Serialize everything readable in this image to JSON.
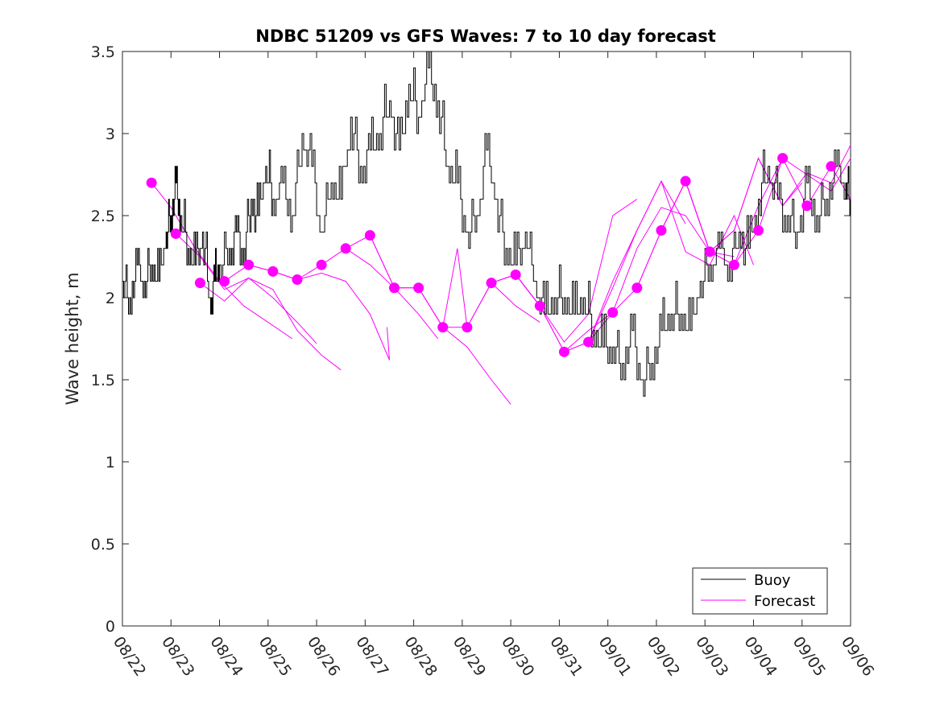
{
  "chart_data": {
    "type": "line",
    "title": "NDBC 51209 vs GFS Waves: 7 to 10 day forecast",
    "xlabel": "",
    "ylabel": "Wave height, m",
    "xlim": [
      0,
      15
    ],
    "ylim": [
      0,
      3.5
    ],
    "x_tick_labels": [
      "08/22",
      "08/23",
      "08/24",
      "08/25",
      "08/26",
      "08/27",
      "08/28",
      "08/29",
      "08/30",
      "08/31",
      "09/01",
      "09/02",
      "09/03",
      "09/04",
      "09/05",
      "09/06"
    ],
    "y_ticks": [
      0,
      0.5,
      1,
      1.5,
      2,
      2.5,
      3,
      3.5
    ],
    "y_tick_labels": [
      "0",
      "0.5",
      "1",
      "1.5",
      "2",
      "2.5",
      "3",
      "3.5"
    ],
    "grid": false,
    "legend": {
      "position": "bottom-right",
      "entries": [
        "Buoy",
        "Forecast"
      ]
    },
    "colors": {
      "buoy": "#000000",
      "forecast": "#ff00ff",
      "axis": "#262626"
    },
    "series": [
      {
        "name": "Buoy",
        "x": [
          0,
          0.15,
          0.3,
          0.45,
          0.6,
          0.75,
          0.9,
          1.0,
          1.1,
          1.2,
          1.35,
          1.5,
          1.65,
          1.8,
          1.9,
          2.0,
          2.2,
          2.35,
          2.5,
          2.65,
          2.8,
          2.95,
          3.1,
          3.3,
          3.5,
          3.7,
          3.9,
          4.1,
          4.3,
          4.5,
          4.7,
          4.9,
          5.1,
          5.3,
          5.5,
          5.7,
          5.9,
          6.1,
          6.3,
          6.5,
          6.7,
          6.9,
          7.1,
          7.3,
          7.5,
          7.7,
          7.9,
          8.1,
          8.3,
          8.5,
          8.7,
          8.9,
          9.1,
          9.3,
          9.5,
          9.7,
          9.9,
          10.1,
          10.3,
          10.5,
          10.7,
          10.9,
          11.1,
          11.3,
          11.5,
          11.7,
          11.9,
          12.1,
          12.3,
          12.5,
          12.7,
          12.9,
          13.1,
          13.3,
          13.5,
          13.7,
          13.9,
          14.1,
          14.3,
          14.5,
          14.7,
          14.9,
          15.0
        ],
        "y": [
          2.1,
          2.0,
          2.2,
          2.1,
          2.2,
          2.1,
          2.4,
          2.5,
          2.7,
          2.5,
          2.3,
          2.2,
          2.4,
          2.0,
          2.1,
          2.2,
          2.3,
          2.4,
          2.3,
          2.6,
          2.5,
          2.8,
          2.6,
          2.7,
          2.5,
          3.0,
          2.8,
          2.4,
          2.7,
          2.6,
          3.1,
          2.8,
          2.9,
          3.0,
          3.2,
          2.9,
          3.3,
          3.1,
          3.4,
          3.2,
          2.8,
          2.7,
          2.4,
          2.5,
          2.9,
          2.6,
          2.3,
          2.2,
          2.4,
          2.1,
          1.9,
          2.0,
          2.0,
          1.9,
          2.0,
          1.8,
          1.7,
          1.7,
          1.6,
          1.8,
          1.5,
          1.6,
          1.8,
          1.9,
          1.9,
          1.8,
          2.1,
          2.2,
          2.3,
          2.2,
          2.4,
          2.3,
          2.6,
          2.8,
          2.6,
          2.5,
          2.4,
          2.7,
          2.5,
          2.6,
          2.8,
          2.7,
          2.6
        ]
      },
      {
        "name": "Forecast",
        "x": [
          0.6,
          1.1,
          1.6,
          2.1,
          2.6,
          3.1,
          3.6,
          4.1,
          4.6,
          5.1,
          5.6,
          6.1,
          6.6,
          7.1,
          7.6,
          8.1,
          8.6,
          9.1,
          9.6,
          10.1,
          10.6,
          11.1,
          11.6,
          12.1,
          12.6,
          13.1,
          13.6,
          14.1,
          14.6
        ],
        "y": [
          2.7,
          2.39,
          2.09,
          2.1,
          2.2,
          2.16,
          2.11,
          2.2,
          2.3,
          2.38,
          2.06,
          2.06,
          1.82,
          1.82,
          2.09,
          2.14,
          1.95,
          1.67,
          1.73,
          1.91,
          2.06,
          2.41,
          2.71,
          2.28,
          2.2,
          2.41,
          2.85,
          2.56,
          2.8
        ]
      }
    ],
    "forecast_runs": [
      [
        [
          0.6,
          2.7
        ],
        [
          1.0,
          2.55
        ],
        [
          1.5,
          2.3
        ],
        [
          2.0,
          2.1
        ],
        [
          2.5,
          1.95
        ],
        [
          3.0,
          1.85
        ],
        [
          3.5,
          1.75
        ]
      ],
      [
        [
          1.1,
          2.39
        ],
        [
          1.6,
          2.25
        ],
        [
          2.1,
          2.05
        ],
        [
          2.6,
          2.12
        ],
        [
          3.1,
          2.0
        ],
        [
          3.6,
          1.85
        ],
        [
          4.0,
          1.72
        ]
      ],
      [
        [
          1.6,
          2.09
        ],
        [
          2.1,
          1.98
        ],
        [
          2.6,
          2.12
        ],
        [
          3.1,
          2.05
        ],
        [
          3.6,
          1.8
        ],
        [
          4.1,
          1.65
        ],
        [
          4.5,
          1.56
        ]
      ],
      [
        [
          2.1,
          2.1
        ],
        [
          2.6,
          2.2
        ],
        [
          3.1,
          2.16
        ],
        [
          3.6,
          2.11
        ],
        [
          4.1,
          2.15
        ],
        [
          4.6,
          2.1
        ],
        [
          5.1,
          1.9
        ],
        [
          5.5,
          1.62
        ],
        [
          5.45,
          1.82
        ]
      ],
      [
        [
          2.6,
          2.2
        ],
        [
          3.1,
          2.16
        ],
        [
          3.6,
          2.11
        ],
        [
          4.1,
          2.2
        ],
        [
          4.6,
          2.3
        ],
        [
          5.1,
          2.2
        ],
        [
          5.6,
          2.06
        ],
        [
          6.1,
          1.9
        ],
        [
          6.5,
          1.75
        ]
      ],
      [
        [
          4.6,
          2.3
        ],
        [
          5.1,
          2.38
        ],
        [
          5.6,
          2.06
        ],
        [
          6.1,
          2.06
        ],
        [
          6.6,
          1.82
        ],
        [
          7.1,
          1.7
        ],
        [
          7.6,
          1.5
        ],
        [
          8.0,
          1.35
        ]
      ],
      [
        [
          5.1,
          2.38
        ],
        [
          5.6,
          2.06
        ],
        [
          6.1,
          2.06
        ],
        [
          6.6,
          1.82
        ],
        [
          7.1,
          1.82
        ],
        [
          7.6,
          2.09
        ],
        [
          8.1,
          1.95
        ],
        [
          8.6,
          1.85
        ]
      ],
      [
        [
          6.6,
          1.82
        ],
        [
          6.9,
          2.3
        ],
        [
          7.1,
          1.82
        ],
        [
          7.6,
          2.09
        ],
        [
          8.1,
          2.14
        ],
        [
          8.6,
          1.95
        ],
        [
          9.1,
          1.73
        ],
        [
          9.6,
          1.9
        ],
        [
          10.1,
          2.5
        ],
        [
          10.6,
          2.6
        ]
      ],
      [
        [
          7.6,
          2.09
        ],
        [
          8.1,
          2.14
        ],
        [
          8.6,
          1.95
        ],
        [
          9.1,
          1.67
        ],
        [
          9.6,
          1.73
        ],
        [
          10.1,
          2.1
        ],
        [
          10.6,
          2.41
        ],
        [
          11.1,
          2.71
        ],
        [
          11.6,
          2.45
        ]
      ],
      [
        [
          8.1,
          2.14
        ],
        [
          8.6,
          1.95
        ],
        [
          9.1,
          1.67
        ],
        [
          9.6,
          1.8
        ],
        [
          10.1,
          1.91
        ],
        [
          10.6,
          2.3
        ],
        [
          11.1,
          2.55
        ],
        [
          11.6,
          2.5
        ],
        [
          12.1,
          2.28
        ],
        [
          12.6,
          2.25
        ]
      ],
      [
        [
          9.1,
          1.67
        ],
        [
          9.6,
          1.73
        ],
        [
          10.1,
          2.06
        ],
        [
          10.6,
          2.41
        ],
        [
          11.1,
          2.71
        ],
        [
          11.6,
          2.28
        ],
        [
          12.1,
          2.2
        ],
        [
          12.6,
          2.5
        ],
        [
          13.0,
          2.2
        ]
      ],
      [
        [
          9.6,
          1.73
        ],
        [
          10.1,
          1.91
        ],
        [
          10.6,
          2.06
        ],
        [
          11.1,
          2.41
        ],
        [
          11.6,
          2.71
        ],
        [
          12.1,
          2.28
        ],
        [
          12.6,
          2.41
        ],
        [
          13.1,
          2.85
        ],
        [
          13.6,
          2.56
        ],
        [
          14.0,
          2.7
        ]
      ],
      [
        [
          10.6,
          2.06
        ],
        [
          11.1,
          2.41
        ],
        [
          11.6,
          2.71
        ],
        [
          12.1,
          2.28
        ],
        [
          12.6,
          2.2
        ],
        [
          13.1,
          2.41
        ],
        [
          13.6,
          2.85
        ],
        [
          14.1,
          2.56
        ],
        [
          14.6,
          2.8
        ],
        [
          15.0,
          2.6
        ]
      ],
      [
        [
          11.1,
          2.41
        ],
        [
          11.6,
          2.71
        ],
        [
          12.1,
          2.28
        ],
        [
          12.6,
          2.41
        ],
        [
          13.1,
          2.85
        ],
        [
          13.6,
          2.56
        ],
        [
          14.1,
          2.76
        ],
        [
          14.6,
          2.7
        ],
        [
          15.0,
          2.93
        ]
      ],
      [
        [
          11.6,
          2.71
        ],
        [
          12.1,
          2.28
        ],
        [
          12.6,
          2.2
        ],
        [
          13.1,
          2.56
        ],
        [
          13.6,
          2.85
        ],
        [
          14.1,
          2.75
        ],
        [
          14.6,
          2.65
        ],
        [
          15.0,
          2.85
        ]
      ]
    ],
    "forecast_markers": {
      "x": [
        0.6,
        1.1,
        1.6,
        2.1,
        2.6,
        3.1,
        3.6,
        4.1,
        4.6,
        5.1,
        5.6,
        6.1,
        6.6,
        7.1,
        7.6,
        8.1,
        8.6,
        9.1,
        9.6,
        10.1,
        10.6,
        11.1,
        11.6,
        12.1,
        12.6,
        13.1,
        13.6,
        14.1,
        14.6
      ],
      "y": [
        2.7,
        2.39,
        2.09,
        2.1,
        2.2,
        2.16,
        2.11,
        2.2,
        2.3,
        2.38,
        2.06,
        2.06,
        1.82,
        1.82,
        2.09,
        2.14,
        1.95,
        1.67,
        1.73,
        1.91,
        2.06,
        2.41,
        2.71,
        2.28,
        2.2,
        2.41,
        2.85,
        2.56,
        2.8
      ]
    }
  }
}
